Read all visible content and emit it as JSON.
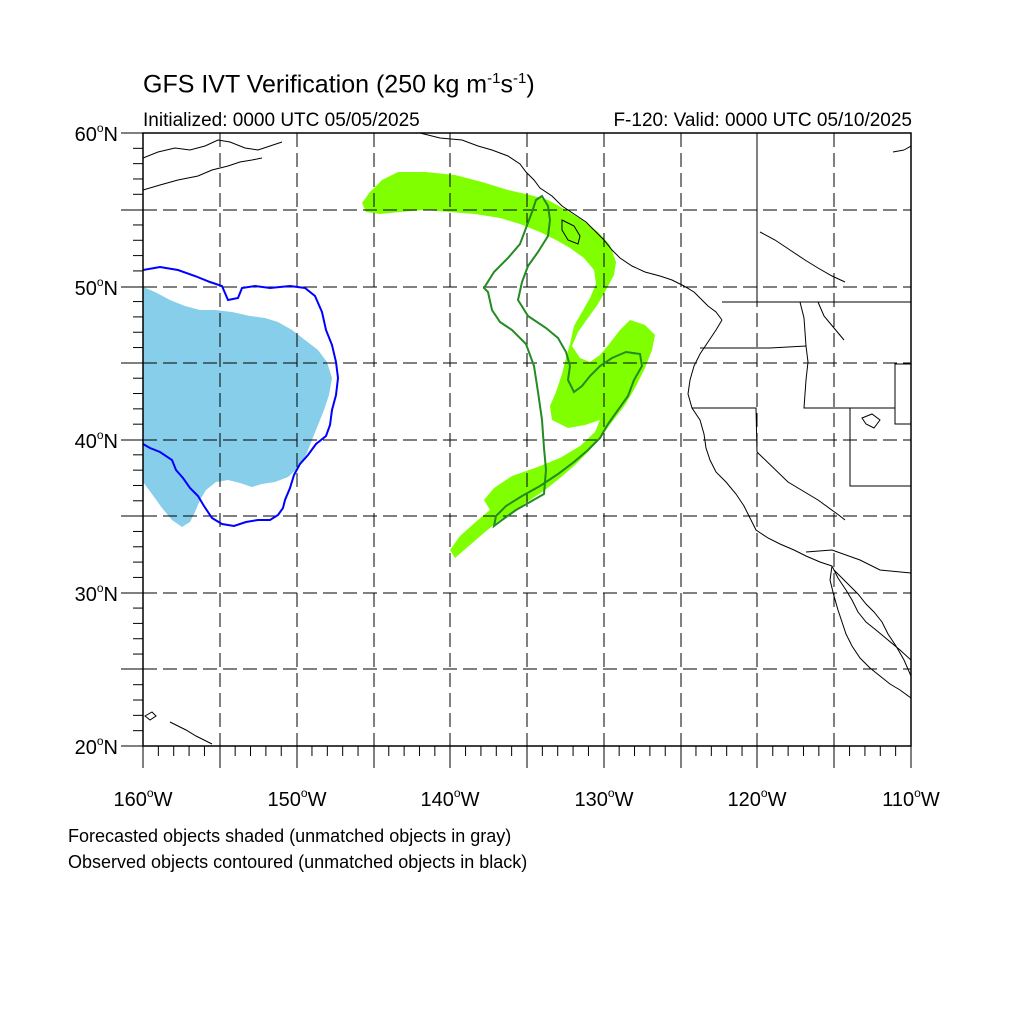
{
  "header": {
    "title_prefix": "GFS IVT Verification (250 kg m",
    "title_sup1": "-1",
    "title_mid": "s",
    "title_sup2": "-1",
    "title_suffix": ")",
    "initialized": "Initialized: 0000 UTC 05/05/2025",
    "valid": "F-120: Valid: 0000 UTC 05/10/2025"
  },
  "axes": {
    "lat_labels": [
      {
        "deg": "60",
        "dir": "N"
      },
      {
        "deg": "50",
        "dir": "N"
      },
      {
        "deg": "40",
        "dir": "N"
      },
      {
        "deg": "30",
        "dir": "N"
      },
      {
        "deg": "20",
        "dir": "N"
      }
    ],
    "lon_labels": [
      {
        "deg": "160",
        "dir": "W"
      },
      {
        "deg": "150",
        "dir": "W"
      },
      {
        "deg": "140",
        "dir": "W"
      },
      {
        "deg": "130",
        "dir": "W"
      },
      {
        "deg": "120",
        "dir": "W"
      },
      {
        "deg": "110",
        "dir": "W"
      }
    ],
    "lat_range": [
      20,
      60
    ],
    "lon_range": [
      -160,
      -110
    ],
    "gridline_interval_deg": 5
  },
  "legend": {
    "line1": "Forecasted objects shaded (unmatched objects in gray)",
    "line2": "Observed objects contoured (unmatched objects in black)"
  },
  "objects": [
    {
      "role": "forecast-shaded",
      "matched": true,
      "fill": "#87ceeb",
      "outline": "#0000ff",
      "region": "central-north-pacific"
    },
    {
      "role": "forecast-shaded",
      "matched": true,
      "fill": "#7fff00",
      "outline": "#228b22",
      "region": "northeast-pacific"
    }
  ],
  "colors": {
    "blue_fill": "#87ceeb",
    "blue_contour": "#0000ff",
    "green_fill": "#7fff00",
    "green_contour": "#228b22"
  }
}
